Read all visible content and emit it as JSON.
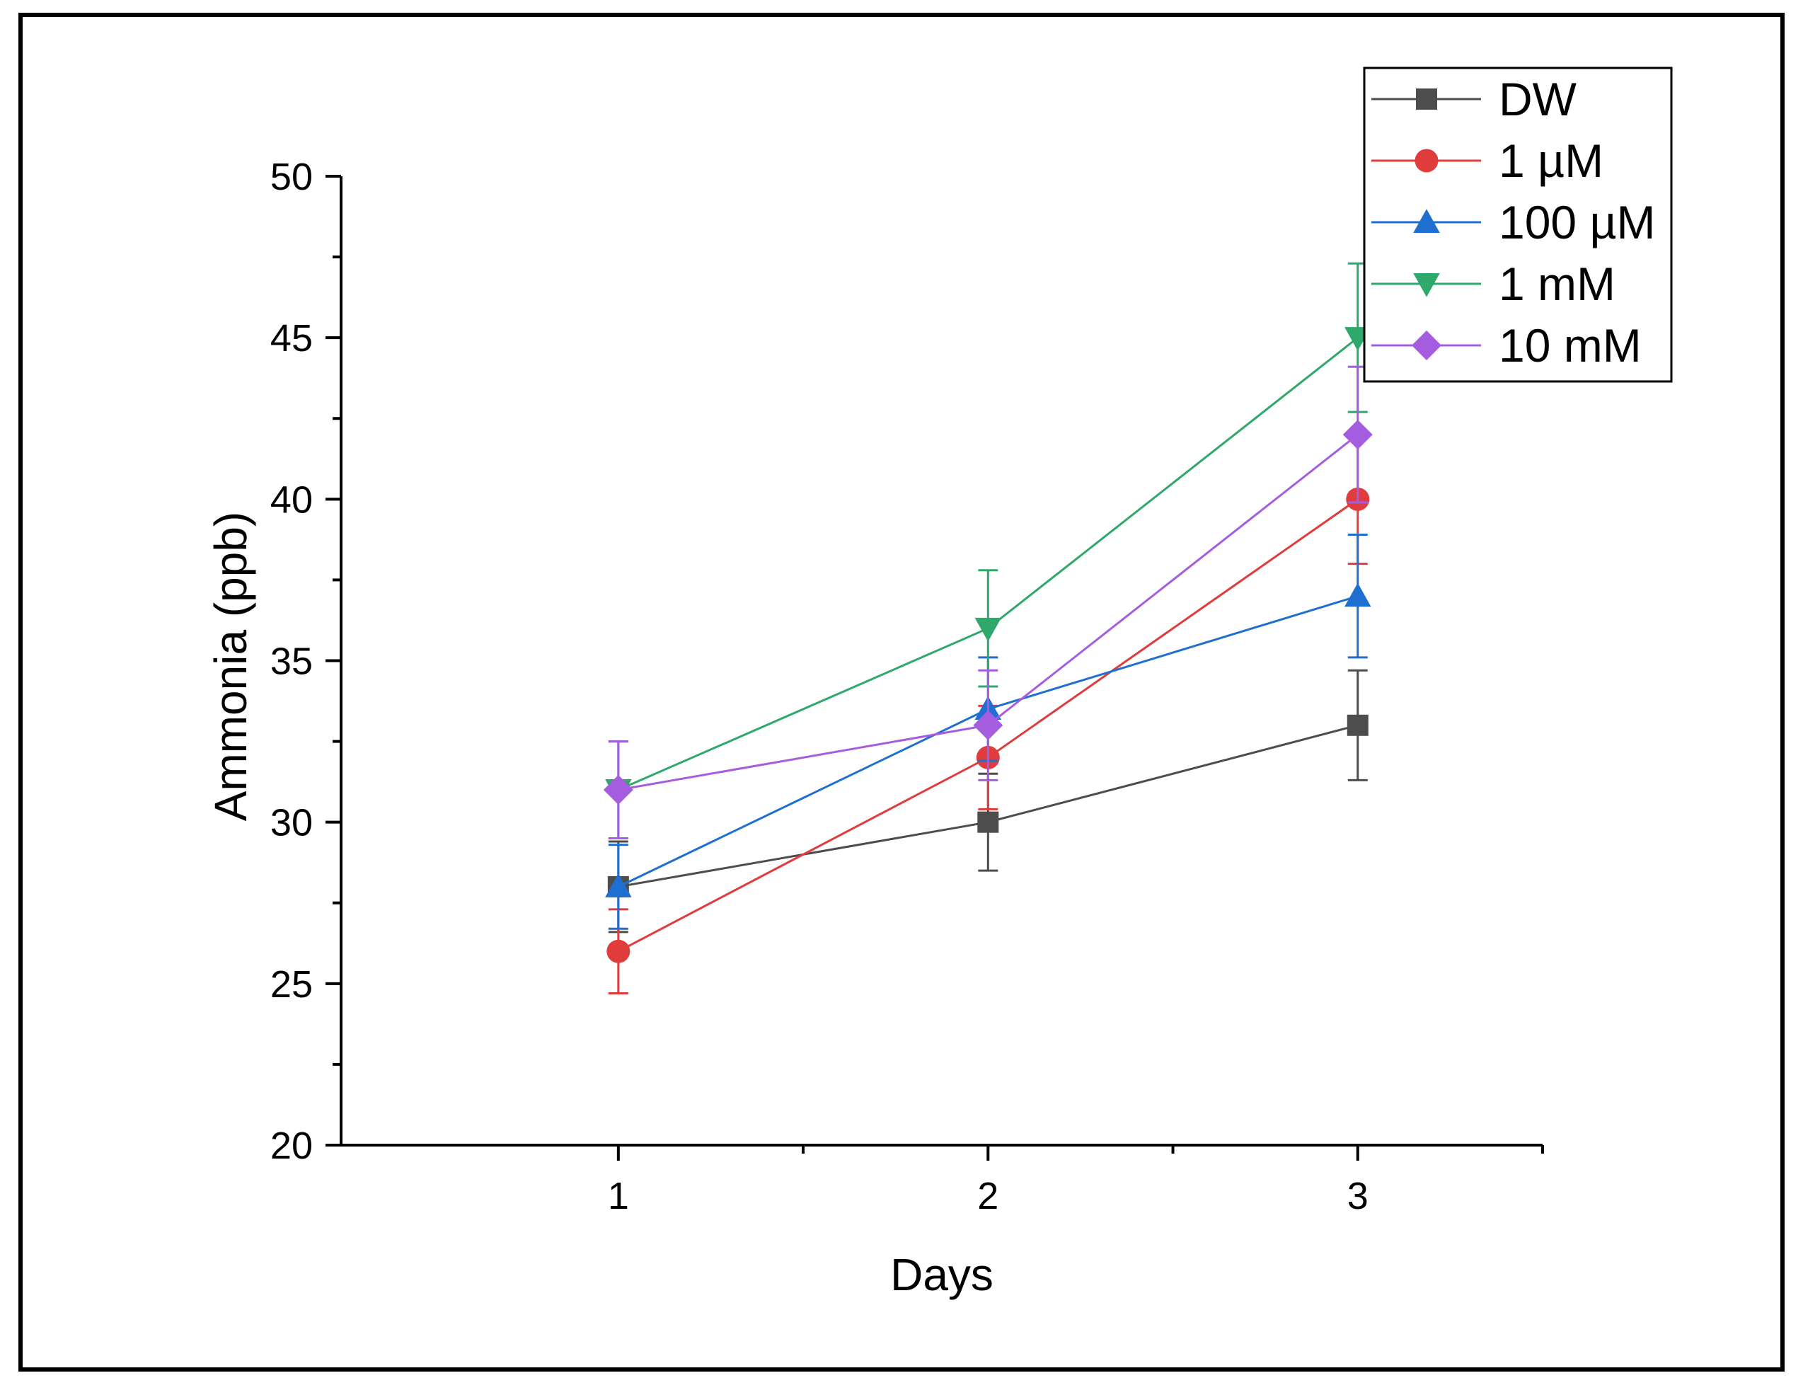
{
  "chart_data": {
    "type": "line",
    "title": "",
    "xlabel": "Days",
    "ylabel": "Ammonia (ppb)",
    "x": [
      1,
      2,
      3
    ],
    "xlim": [
      0.25,
      3.5
    ],
    "ylim": [
      20,
      50
    ],
    "x_ticks": [
      "1",
      "2",
      "3"
    ],
    "y_ticks": [
      "20",
      "25",
      "30",
      "35",
      "40",
      "45",
      "50"
    ],
    "grid": false,
    "legend_position": "top-right",
    "series": [
      {
        "name": "DW",
        "color": "#4d4d4d",
        "marker": "square",
        "values": [
          28,
          30,
          33
        ],
        "errors": [
          1.4,
          1.5,
          1.7
        ]
      },
      {
        "name": "1 µM",
        "color": "#e03c3c",
        "marker": "circle",
        "values": [
          26,
          32,
          40
        ],
        "errors": [
          1.3,
          1.6,
          2.0
        ]
      },
      {
        "name": "100 µM",
        "color": "#1f6fd1",
        "marker": "triangle-up",
        "values": [
          28,
          33.5,
          37
        ],
        "errors": [
          1.3,
          1.6,
          1.9
        ]
      },
      {
        "name": "1 mM",
        "color": "#2ea86b",
        "marker": "triangle-down",
        "values": [
          31,
          36,
          45
        ],
        "errors": [
          1.5,
          1.8,
          2.3
        ]
      },
      {
        "name": "10 mM",
        "color": "#a55de0",
        "marker": "diamond",
        "values": [
          31,
          33,
          42
        ],
        "errors": [
          1.5,
          1.7,
          2.1
        ]
      }
    ]
  }
}
